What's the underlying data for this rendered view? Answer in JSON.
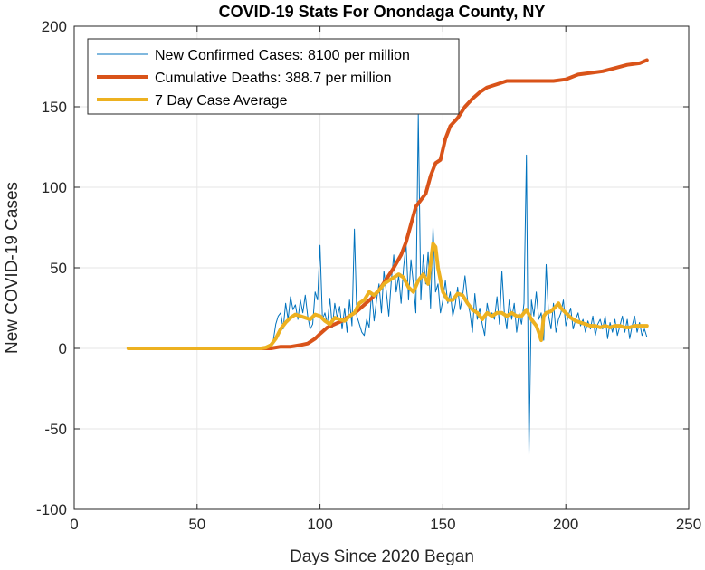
{
  "chart_data": {
    "type": "line",
    "title": "COVID-19 Stats For Onondaga County, NY",
    "xlabel": "Days Since 2020 Began",
    "ylabel": "New COVID-19 Cases",
    "xlim": [
      0,
      250
    ],
    "ylim": [
      -100,
      200
    ],
    "xticks": [
      0,
      50,
      100,
      150,
      200,
      250
    ],
    "yticks": [
      -100,
      -50,
      0,
      50,
      100,
      150,
      200
    ],
    "grid": true,
    "legend_position": "top-left",
    "series": [
      {
        "name": "New Confirmed Cases: 8100 per million",
        "color": "#0072BD",
        "line_width": 1,
        "points": [
          [
            22,
            0
          ],
          [
            30,
            0
          ],
          [
            40,
            0
          ],
          [
            50,
            0
          ],
          [
            60,
            0
          ],
          [
            70,
            0
          ],
          [
            76,
            0
          ],
          [
            78,
            1
          ],
          [
            80,
            3
          ],
          [
            81,
            5
          ],
          [
            82,
            15
          ],
          [
            83,
            20
          ],
          [
            84,
            22
          ],
          [
            85,
            12
          ],
          [
            86,
            28
          ],
          [
            87,
            18
          ],
          [
            88,
            32
          ],
          [
            89,
            24
          ],
          [
            90,
            27
          ],
          [
            91,
            18
          ],
          [
            92,
            30
          ],
          [
            93,
            22
          ],
          [
            94,
            33
          ],
          [
            95,
            20
          ],
          [
            96,
            12
          ],
          [
            97,
            15
          ],
          [
            98,
            35
          ],
          [
            99,
            30
          ],
          [
            100,
            64
          ],
          [
            101,
            18
          ],
          [
            102,
            22
          ],
          [
            103,
            15
          ],
          [
            104,
            31
          ],
          [
            105,
            13
          ],
          [
            106,
            28
          ],
          [
            107,
            19
          ],
          [
            108,
            26
          ],
          [
            109,
            12
          ],
          [
            110,
            25
          ],
          [
            111,
            10
          ],
          [
            112,
            30
          ],
          [
            113,
            14
          ],
          [
            114,
            74
          ],
          [
            115,
            20
          ],
          [
            116,
            15
          ],
          [
            117,
            10
          ],
          [
            118,
            8
          ],
          [
            119,
            18
          ],
          [
            120,
            13
          ],
          [
            121,
            35
          ],
          [
            122,
            17
          ],
          [
            123,
            30
          ],
          [
            124,
            40
          ],
          [
            125,
            22
          ],
          [
            126,
            48
          ],
          [
            127,
            35
          ],
          [
            128,
            20
          ],
          [
            129,
            42
          ],
          [
            130,
            58
          ],
          [
            131,
            35
          ],
          [
            132,
            45
          ],
          [
            133,
            28
          ],
          [
            134,
            50
          ],
          [
            135,
            65
          ],
          [
            136,
            30
          ],
          [
            137,
            55
          ],
          [
            138,
            40
          ],
          [
            139,
            22
          ],
          [
            140,
            145
          ],
          [
            141,
            30
          ],
          [
            142,
            58
          ],
          [
            143,
            40
          ],
          [
            144,
            60
          ],
          [
            145,
            25
          ],
          [
            146,
            75
          ],
          [
            147,
            35
          ],
          [
            148,
            40
          ],
          [
            149,
            22
          ],
          [
            150,
            30
          ],
          [
            151,
            42
          ],
          [
            152,
            28
          ],
          [
            153,
            35
          ],
          [
            154,
            20
          ],
          [
            155,
            27
          ],
          [
            156,
            38
          ],
          [
            157,
            24
          ],
          [
            158,
            32
          ],
          [
            159,
            45
          ],
          [
            160,
            30
          ],
          [
            161,
            22
          ],
          [
            162,
            10
          ],
          [
            163,
            34
          ],
          [
            164,
            18
          ],
          [
            165,
            25
          ],
          [
            166,
            15
          ],
          [
            167,
            8
          ],
          [
            168,
            28
          ],
          [
            169,
            20
          ],
          [
            170,
            22
          ],
          [
            171,
            18
          ],
          [
            172,
            32
          ],
          [
            173,
            15
          ],
          [
            174,
            48
          ],
          [
            175,
            22
          ],
          [
            176,
            12
          ],
          [
            177,
            30
          ],
          [
            178,
            18
          ],
          [
            179,
            28
          ],
          [
            180,
            10
          ],
          [
            181,
            22
          ],
          [
            182,
            15
          ],
          [
            183,
            28
          ],
          [
            184,
            120
          ],
          [
            185,
            -66
          ],
          [
            186,
            30
          ],
          [
            187,
            20
          ],
          [
            188,
            35
          ],
          [
            189,
            18
          ],
          [
            190,
            22
          ],
          [
            191,
            5
          ],
          [
            192,
            52
          ],
          [
            193,
            20
          ],
          [
            194,
            12
          ],
          [
            195,
            28
          ],
          [
            196,
            10
          ],
          [
            197,
            18
          ],
          [
            198,
            22
          ],
          [
            199,
            30
          ],
          [
            200,
            14
          ],
          [
            201,
            20
          ],
          [
            202,
            25
          ],
          [
            203,
            12
          ],
          [
            204,
            18
          ],
          [
            205,
            22
          ],
          [
            206,
            14
          ],
          [
            207,
            18
          ],
          [
            208,
            10
          ],
          [
            209,
            17
          ],
          [
            210,
            12
          ],
          [
            211,
            20
          ],
          [
            212,
            8
          ],
          [
            213,
            15
          ],
          [
            214,
            18
          ],
          [
            215,
            12
          ],
          [
            216,
            20
          ],
          [
            217,
            6
          ],
          [
            218,
            16
          ],
          [
            219,
            10
          ],
          [
            220,
            18
          ],
          [
            221,
            8
          ],
          [
            222,
            14
          ],
          [
            223,
            20
          ],
          [
            224,
            10
          ],
          [
            225,
            18
          ],
          [
            226,
            6
          ],
          [
            227,
            14
          ],
          [
            228,
            20
          ],
          [
            229,
            10
          ],
          [
            230,
            16
          ],
          [
            231,
            8
          ],
          [
            232,
            12
          ],
          [
            233,
            7
          ]
        ]
      },
      {
        "name": "Cumulative Deaths: 388.7 per million",
        "color": "#D95319",
        "line_width": 4,
        "points": [
          [
            76,
            0
          ],
          [
            80,
            0
          ],
          [
            84,
            1
          ],
          [
            88,
            1
          ],
          [
            92,
            2
          ],
          [
            95,
            3
          ],
          [
            98,
            6
          ],
          [
            100,
            9
          ],
          [
            103,
            13
          ],
          [
            106,
            15
          ],
          [
            109,
            17
          ],
          [
            112,
            20
          ],
          [
            115,
            23
          ],
          [
            118,
            27
          ],
          [
            121,
            31
          ],
          [
            124,
            36
          ],
          [
            127,
            43
          ],
          [
            130,
            50
          ],
          [
            133,
            58
          ],
          [
            135,
            66
          ],
          [
            137,
            77
          ],
          [
            139,
            88
          ],
          [
            141,
            92
          ],
          [
            143,
            96
          ],
          [
            145,
            107
          ],
          [
            147,
            115
          ],
          [
            149,
            117
          ],
          [
            151,
            130
          ],
          [
            153,
            138
          ],
          [
            156,
            143
          ],
          [
            159,
            150
          ],
          [
            162,
            155
          ],
          [
            165,
            159
          ],
          [
            168,
            162
          ],
          [
            172,
            164
          ],
          [
            176,
            166
          ],
          [
            180,
            166
          ],
          [
            185,
            166
          ],
          [
            190,
            166
          ],
          [
            195,
            166
          ],
          [
            200,
            167
          ],
          [
            205,
            170
          ],
          [
            210,
            171
          ],
          [
            215,
            172
          ],
          [
            220,
            174
          ],
          [
            225,
            176
          ],
          [
            230,
            177
          ],
          [
            233,
            179
          ]
        ]
      },
      {
        "name": "7 Day Case Average",
        "color": "#EDB120",
        "line_width": 4,
        "points": [
          [
            22,
            0
          ],
          [
            40,
            0
          ],
          [
            60,
            0
          ],
          [
            76,
            0
          ],
          [
            78,
            0.5
          ],
          [
            80,
            2
          ],
          [
            82,
            6
          ],
          [
            84,
            12
          ],
          [
            86,
            16
          ],
          [
            88,
            19
          ],
          [
            90,
            21
          ],
          [
            92,
            20
          ],
          [
            94,
            19
          ],
          [
            96,
            18
          ],
          [
            98,
            21
          ],
          [
            100,
            20
          ],
          [
            102,
            17
          ],
          [
            104,
            15
          ],
          [
            106,
            19
          ],
          [
            108,
            18
          ],
          [
            110,
            17
          ],
          [
            112,
            20
          ],
          [
            114,
            22
          ],
          [
            116,
            28
          ],
          [
            118,
            30
          ],
          [
            120,
            35
          ],
          [
            122,
            33
          ],
          [
            124,
            36
          ],
          [
            126,
            40
          ],
          [
            128,
            42
          ],
          [
            130,
            44
          ],
          [
            132,
            46
          ],
          [
            134,
            44
          ],
          [
            136,
            38
          ],
          [
            138,
            35
          ],
          [
            140,
            42
          ],
          [
            142,
            46
          ],
          [
            144,
            40
          ],
          [
            146,
            65
          ],
          [
            147,
            63
          ],
          [
            148,
            50
          ],
          [
            150,
            35
          ],
          [
            152,
            30
          ],
          [
            154,
            30
          ],
          [
            156,
            34
          ],
          [
            158,
            33
          ],
          [
            160,
            28
          ],
          [
            162,
            24
          ],
          [
            164,
            22
          ],
          [
            166,
            18
          ],
          [
            168,
            22
          ],
          [
            170,
            20
          ],
          [
            172,
            22
          ],
          [
            174,
            22
          ],
          [
            176,
            20
          ],
          [
            178,
            22
          ],
          [
            180,
            20
          ],
          [
            182,
            20
          ],
          [
            184,
            24
          ],
          [
            186,
            18
          ],
          [
            188,
            14
          ],
          [
            189,
            10
          ],
          [
            190,
            5
          ],
          [
            191,
            20
          ],
          [
            192,
            22
          ],
          [
            194,
            23
          ],
          [
            196,
            26
          ],
          [
            197,
            28
          ],
          [
            198,
            25
          ],
          [
            200,
            22
          ],
          [
            202,
            19
          ],
          [
            204,
            17
          ],
          [
            206,
            16
          ],
          [
            208,
            15
          ],
          [
            210,
            14
          ],
          [
            212,
            14
          ],
          [
            214,
            13
          ],
          [
            216,
            14
          ],
          [
            218,
            13
          ],
          [
            220,
            14
          ],
          [
            222,
            14
          ],
          [
            224,
            13
          ],
          [
            226,
            13
          ],
          [
            228,
            14
          ],
          [
            230,
            14
          ],
          [
            233,
            14
          ]
        ]
      }
    ]
  }
}
